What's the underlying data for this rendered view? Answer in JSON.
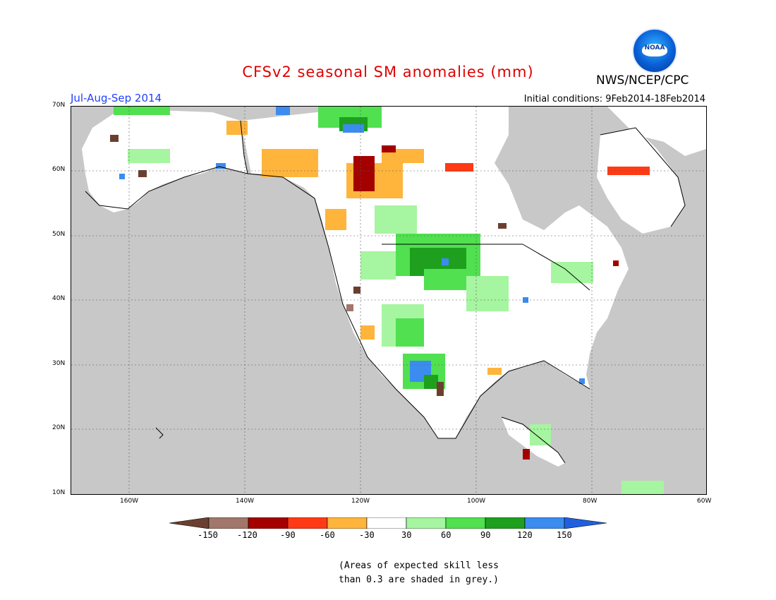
{
  "header": {
    "title": "CFSv2 seasonal SM anomalies (mm)",
    "agency": "NWS/NCEP/CPC",
    "season": "Jul-Aug-Sep 2014",
    "initial_conditions": "Initial conditions: 9Feb2014-18Feb2014",
    "logo_text": "NOAA"
  },
  "map": {
    "lat_ticks": [
      "70N",
      "60N",
      "50N",
      "40N",
      "30N",
      "20N",
      "10N"
    ],
    "lon_ticks": [
      "160W",
      "140W",
      "120W",
      "100W",
      "80W",
      "60W"
    ]
  },
  "legend": {
    "labels": [
      "-150",
      "-120",
      "-90",
      "-60",
      "-30",
      "30",
      "60",
      "90",
      "120",
      "150"
    ],
    "colors": [
      "#6b3f2f",
      "#a0776a",
      "#a50000",
      "#ff3a14",
      "#ffb43c",
      "#ffffff",
      "#a6f5a0",
      "#50e050",
      "#1ea01e",
      "#3c8cf0",
      "#2060e0"
    ]
  },
  "footnote": {
    "line1": "(Areas of expected skill less",
    "line2": "than 0.3 are shaded in grey.)"
  }
}
